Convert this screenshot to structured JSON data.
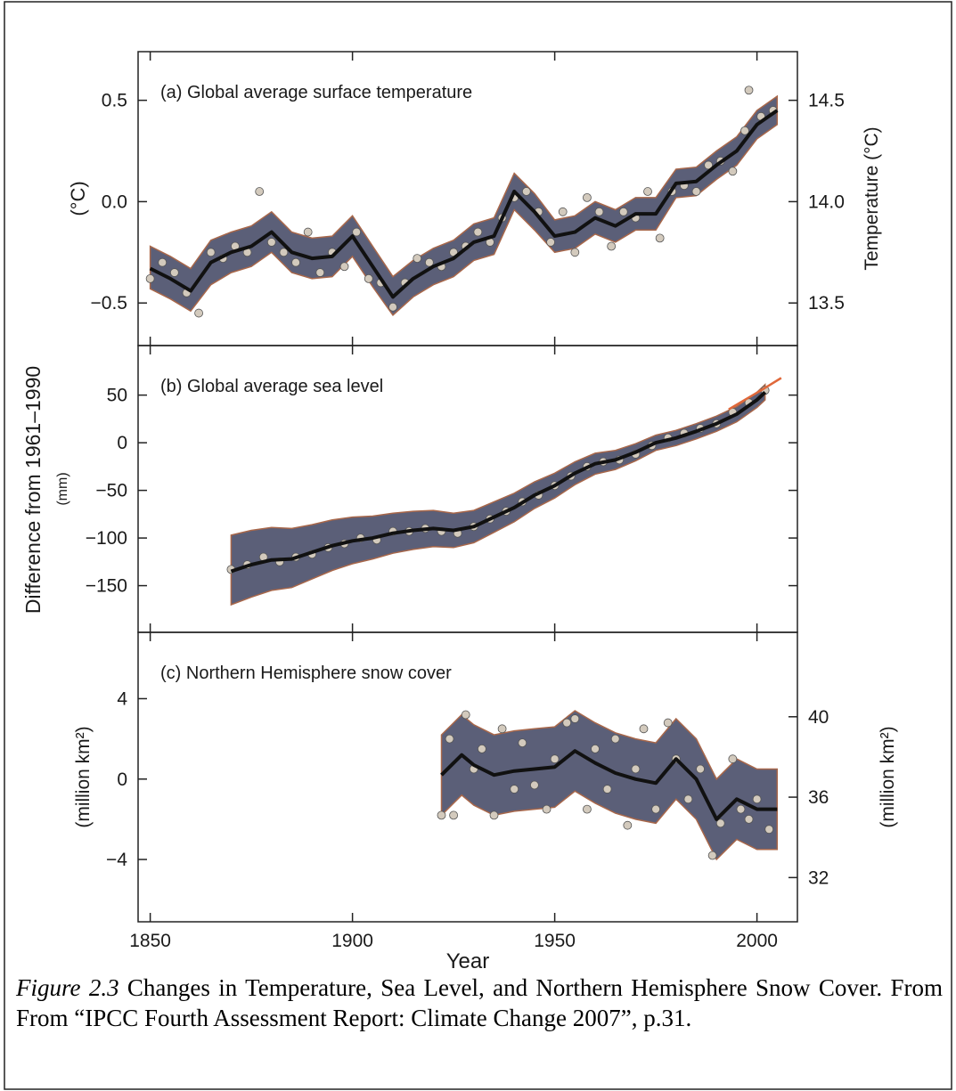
{
  "ylabel": "Difference from 1961–1990",
  "chart_data": [
    {
      "type": "line",
      "title": "(a) Global average surface temperature",
      "ylabel": "(°C)",
      "y2label": "Temperature (°C)",
      "xlim": [
        1847,
        2010
      ],
      "xticks": [
        1850,
        1900,
        1950,
        2000
      ],
      "ylim": [
        -0.71,
        0.74
      ],
      "yticks": [
        {
          "value": -0.5,
          "label": "−0.5"
        },
        {
          "value": 0,
          "label": "0.0"
        },
        0.5
      ],
      "y2lim": [
        13.29,
        14.74
      ],
      "y2ticks": [
        13.5,
        {
          "value": 14,
          "label": "14.0"
        },
        14.5
      ],
      "band_color": "#5b5f78",
      "band_edge": "#a8674a",
      "line_color": "#111111",
      "point_color": "#d3cabd",
      "x": [
        1850,
        1855,
        1860,
        1865,
        1870,
        1875,
        1880,
        1885,
        1890,
        1895,
        1900,
        1905,
        1910,
        1915,
        1920,
        1925,
        1930,
        1935,
        1940,
        1945,
        1950,
        1955,
        1960,
        1965,
        1970,
        1975,
        1980,
        1985,
        1990,
        1995,
        2000,
        2005
      ],
      "values": [
        -0.33,
        -0.38,
        -0.44,
        -0.3,
        -0.25,
        -0.22,
        -0.15,
        -0.25,
        -0.28,
        -0.27,
        -0.17,
        -0.32,
        -0.47,
        -0.38,
        -0.32,
        -0.28,
        -0.2,
        -0.17,
        0.05,
        -0.05,
        -0.17,
        -0.15,
        -0.08,
        -0.12,
        -0.06,
        -0.06,
        0.09,
        0.1,
        0.18,
        0.25,
        0.38,
        0.45
      ],
      "band_low": [
        -0.43,
        -0.48,
        -0.54,
        -0.41,
        -0.35,
        -0.32,
        -0.25,
        -0.35,
        -0.38,
        -0.37,
        -0.27,
        -0.42,
        -0.56,
        -0.47,
        -0.41,
        -0.37,
        -0.29,
        -0.26,
        -0.04,
        -0.14,
        -0.25,
        -0.23,
        -0.16,
        -0.2,
        -0.14,
        -0.14,
        0.02,
        0.03,
        0.11,
        0.18,
        0.31,
        0.38
      ],
      "band_high": [
        -0.22,
        -0.27,
        -0.33,
        -0.19,
        -0.15,
        -0.12,
        -0.05,
        -0.15,
        -0.18,
        -0.17,
        -0.07,
        -0.22,
        -0.37,
        -0.29,
        -0.23,
        -0.19,
        -0.11,
        -0.08,
        0.14,
        0.04,
        -0.09,
        -0.07,
        0.0,
        -0.04,
        0.02,
        0.02,
        0.16,
        0.17,
        0.25,
        0.32,
        0.45,
        0.52
      ],
      "points": {
        "x": [
          1850,
          1853,
          1856,
          1859,
          1862,
          1865,
          1868,
          1871,
          1874,
          1877,
          1880,
          1883,
          1886,
          1889,
          1892,
          1895,
          1898,
          1901,
          1904,
          1907,
          1910,
          1913,
          1916,
          1919,
          1922,
          1925,
          1928,
          1931,
          1934,
          1937,
          1940,
          1943,
          1946,
          1949,
          1952,
          1955,
          1958,
          1961,
          1964,
          1967,
          1970,
          1973,
          1976,
          1979,
          1982,
          1985,
          1988,
          1991,
          1994,
          1997,
          1998,
          2001,
          2004
        ],
        "values": [
          -0.38,
          -0.3,
          -0.35,
          -0.45,
          -0.55,
          -0.25,
          -0.28,
          -0.22,
          -0.25,
          0.05,
          -0.2,
          -0.25,
          -0.3,
          -0.15,
          -0.35,
          -0.25,
          -0.32,
          -0.15,
          -0.38,
          -0.4,
          -0.52,
          -0.4,
          -0.28,
          -0.3,
          -0.32,
          -0.25,
          -0.22,
          -0.15,
          -0.2,
          -0.08,
          0.02,
          0.05,
          -0.05,
          -0.2,
          -0.05,
          -0.25,
          0.02,
          -0.05,
          -0.22,
          -0.05,
          -0.08,
          0.05,
          -0.18,
          0.05,
          0.08,
          0.05,
          0.18,
          0.2,
          0.15,
          0.35,
          0.55,
          0.42,
          0.45
        ]
      }
    },
    {
      "type": "line",
      "title": "(b) Global average sea level",
      "ylabel": "(mm)",
      "xlim": [
        1847,
        2010
      ],
      "xticks": [
        1850,
        1900,
        1950,
        2000
      ],
      "ylim": [
        -199,
        102
      ],
      "yticks": [
        {
          "value": -150,
          "label": "−150"
        },
        {
          "value": -100,
          "label": "−100"
        },
        {
          "value": -50,
          "label": "−50"
        },
        0,
        50
      ],
      "band_color": "#5b5f78",
      "band_edge": "#a8674a",
      "line_color": "#111111",
      "point_color": "#d3cabd",
      "x": [
        1870,
        1875,
        1880,
        1885,
        1890,
        1895,
        1900,
        1905,
        1910,
        1915,
        1920,
        1925,
        1930,
        1935,
        1940,
        1945,
        1950,
        1955,
        1960,
        1965,
        1970,
        1975,
        1980,
        1985,
        1990,
        1995,
        2000,
        2002
      ],
      "values": [
        -135,
        -128,
        -123,
        -122,
        -115,
        -108,
        -103,
        -100,
        -95,
        -92,
        -90,
        -92,
        -88,
        -78,
        -68,
        -55,
        -45,
        -32,
        -22,
        -18,
        -10,
        0,
        5,
        12,
        20,
        30,
        45,
        53
      ],
      "band_low": [
        -170,
        -162,
        -155,
        -152,
        -143,
        -134,
        -127,
        -122,
        -116,
        -112,
        -109,
        -110,
        -105,
        -94,
        -83,
        -69,
        -58,
        -44,
        -33,
        -28,
        -19,
        -8,
        -3,
        4,
        12,
        22,
        37,
        45
      ],
      "band_high": [
        -97,
        -92,
        -89,
        -90,
        -86,
        -81,
        -78,
        -77,
        -74,
        -72,
        -71,
        -74,
        -71,
        -62,
        -53,
        -41,
        -32,
        -20,
        -11,
        -8,
        -1,
        8,
        13,
        20,
        28,
        38,
        53,
        61
      ],
      "points": {
        "x": [
          1870,
          1874,
          1878,
          1882,
          1886,
          1890,
          1894,
          1898,
          1902,
          1906,
          1910,
          1914,
          1918,
          1922,
          1926,
          1930,
          1934,
          1938,
          1942,
          1946,
          1950,
          1954,
          1958,
          1962,
          1966,
          1970,
          1974,
          1978,
          1982,
          1986,
          1990,
          1994,
          1998,
          2002
        ],
        "values": [
          -133,
          -128,
          -120,
          -125,
          -120,
          -117,
          -110,
          -106,
          -100,
          -102,
          -93,
          -93,
          -90,
          -93,
          -95,
          -88,
          -80,
          -72,
          -62,
          -55,
          -45,
          -35,
          -25,
          -20,
          -18,
          -12,
          -3,
          5,
          10,
          15,
          20,
          32,
          42,
          55
        ]
      },
      "satellite": {
        "x": [
          1993,
          1997,
          2001,
          2006
        ],
        "values": [
          35,
          45,
          55,
          68
        ],
        "color": "#e0683a"
      }
    },
    {
      "type": "line",
      "title": "(c) Northern Hemisphere snow cover",
      "ylabel": "(million km²)",
      "y2label": "(million km²)",
      "xlabel": "Year",
      "xlim": [
        1847,
        2010
      ],
      "xticks": [
        1850,
        1900,
        1950,
        2000
      ],
      "ylim": [
        -7.1,
        7.3
      ],
      "yticks": [
        {
          "value": -4,
          "label": "−4"
        },
        0,
        4
      ],
      "y2lim": [
        29.8,
        44.2
      ],
      "y2ticks": [
        32,
        36,
        40
      ],
      "band_color": "#5b5f78",
      "band_edge": "#a8674a",
      "line_color": "#111111",
      "point_color": "#d3cabd",
      "x": [
        1922,
        1925,
        1927,
        1930,
        1935,
        1940,
        1945,
        1950,
        1955,
        1960,
        1965,
        1970,
        1975,
        1980,
        1985,
        1990,
        1995,
        2000,
        2005
      ],
      "values": [
        0.2,
        0.8,
        1.2,
        0.7,
        0.2,
        0.4,
        0.5,
        0.6,
        1.4,
        0.8,
        0.3,
        0.0,
        -0.2,
        1.0,
        0.0,
        -2.0,
        -1.0,
        -1.5,
        -1.5
      ],
      "band_low": [
        -1.8,
        -1.2,
        -0.8,
        -1.3,
        -1.8,
        -1.6,
        -1.5,
        -1.4,
        -0.6,
        -1.2,
        -1.7,
        -2.0,
        -2.2,
        -1.0,
        -2.0,
        -4.0,
        -3.0,
        -3.5,
        -3.5
      ],
      "band_high": [
        2.2,
        2.8,
        3.2,
        2.7,
        2.2,
        2.4,
        2.5,
        2.6,
        3.4,
        2.8,
        2.3,
        2.0,
        1.8,
        3.0,
        2.0,
        0.0,
        1.0,
        0.5,
        0.5
      ],
      "points": {
        "x": [
          1922,
          1924,
          1925,
          1928,
          1930,
          1932,
          1935,
          1937,
          1940,
          1942,
          1945,
          1948,
          1950,
          1953,
          1955,
          1958,
          1960,
          1963,
          1965,
          1968,
          1970,
          1972,
          1975,
          1978,
          1980,
          1983,
          1986,
          1989,
          1991,
          1994,
          1996,
          1998,
          2000,
          2003
        ],
        "values": [
          -1.8,
          2.0,
          -1.8,
          3.2,
          0.5,
          1.5,
          -1.8,
          2.5,
          -0.5,
          1.8,
          -0.3,
          -1.5,
          1.0,
          2.8,
          3.0,
          -1.5,
          1.5,
          -0.5,
          2.0,
          -2.3,
          0.5,
          2.5,
          -1.5,
          2.8,
          1.0,
          -1.0,
          0.5,
          -3.8,
          -2.2,
          1.0,
          -1.5,
          -2.0,
          -1.0,
          -2.5
        ]
      }
    }
  ],
  "caption": {
    "label": "Figure 2.3",
    "text": " Changes in Temperature, Sea Level, and Northern Hemisphere Snow Cover. From From “IPCC Fourth Assessment Report: Climate Change 2007”, p.31."
  }
}
